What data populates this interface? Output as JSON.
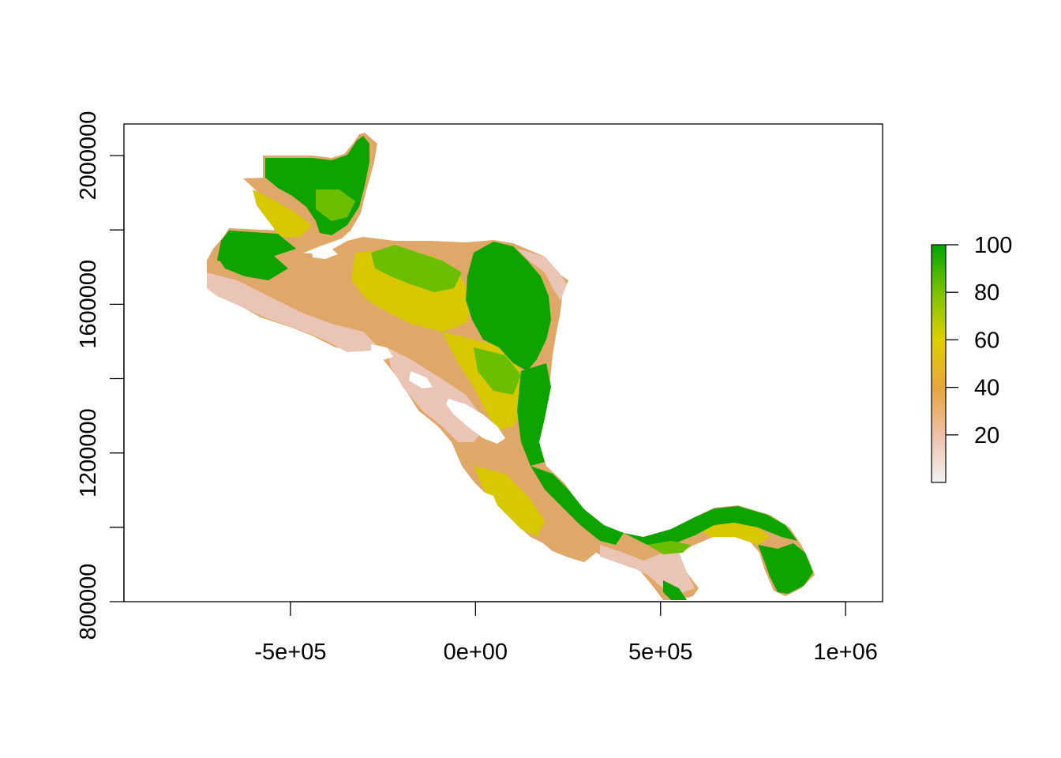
{
  "map": {
    "x_axis": {
      "ticks": [
        {
          "value": -500000,
          "label": "-5e+05"
        },
        {
          "value": 0,
          "label": "0e+00"
        },
        {
          "value": 500000,
          "label": "5e+05"
        },
        {
          "value": 1000000,
          "label": "1e+06"
        }
      ],
      "range": [
        -950000,
        1100000
      ]
    },
    "y_axis": {
      "ticks": [
        {
          "value": 800000,
          "label": "800000"
        },
        {
          "value": 1000000,
          "label": ""
        },
        {
          "value": 1200000,
          "label": "1200000"
        },
        {
          "value": 1400000,
          "label": ""
        },
        {
          "value": 1600000,
          "label": "1600000"
        },
        {
          "value": 1800000,
          "label": ""
        },
        {
          "value": 2000000,
          "label": "2000000"
        }
      ],
      "range": [
        800000,
        2085000
      ]
    },
    "legend": {
      "ticks": [
        {
          "value": 20,
          "label": "20"
        },
        {
          "value": 40,
          "label": "40"
        },
        {
          "value": 60,
          "label": "60"
        },
        {
          "value": 80,
          "label": "80"
        },
        {
          "value": 100,
          "label": "100"
        }
      ],
      "range": [
        0,
        100
      ],
      "colors": [
        "#f2f2f2",
        "#eec0a8",
        "#e6a53c",
        "#dfd000",
        "#7cc300",
        "#00a600"
      ],
      "placement": "right"
    },
    "raster_colors": {
      "high": "#0fa300",
      "upper_mid": "#6cbf00",
      "mid": "#d8c800",
      "low": "#e0a868",
      "very_low": "#eac4b4",
      "water": "#ffffff"
    }
  }
}
